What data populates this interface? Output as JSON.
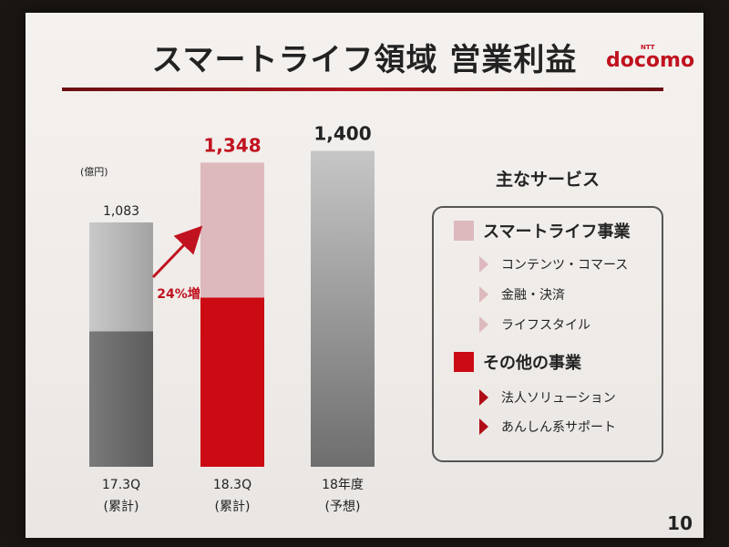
{
  "title": "スマートライフ領域 営業利益",
  "logo": {
    "small": "NTT",
    "brand": "docomo"
  },
  "page_number": "10",
  "colors": {
    "accent": "#c1121f",
    "smartlife": "#ddb9bd",
    "other": "#cc0a14",
    "gray_light": "#b3b3b3",
    "gray_dark": "#6a6a6a"
  },
  "chart_data": {
    "type": "bar",
    "unit_label": "(億円)",
    "categories": [
      {
        "line1": "17.3Q",
        "line2": "(累計)"
      },
      {
        "line1": "18.3Q",
        "line2": "(累計)"
      },
      {
        "line1": "18年度",
        "line2": "(予想)"
      }
    ],
    "totals": [
      1083,
      1348,
      1400
    ],
    "total_labels": [
      "1,083",
      "1,348",
      "1,400"
    ],
    "segments": [
      {
        "bottom": 600,
        "top": 483
      },
      {
        "bottom": 750,
        "top": 598
      },
      {
        "bottom": 1400,
        "top": 0
      }
    ],
    "growth_label": "24%増",
    "ylim": [
      0,
      1600
    ],
    "grid": false
  },
  "legend": {
    "title": "主なサービス",
    "groups": [
      {
        "name": "スマートライフ事業",
        "items": [
          "コンテンツ・コマース",
          "金融・決済",
          "ライフスタイル"
        ]
      },
      {
        "name": "その他の事業",
        "items": [
          "法人ソリューション",
          "あんしん系サポート"
        ]
      }
    ]
  }
}
